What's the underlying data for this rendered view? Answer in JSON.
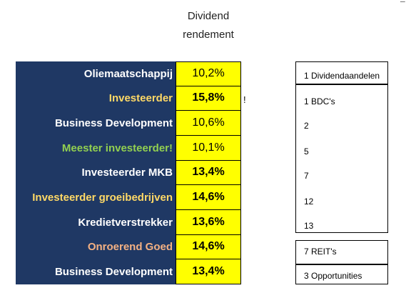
{
  "header": {
    "line1": "Dividend",
    "line2": "rendement"
  },
  "corner_mark": "¯",
  "rows": [
    {
      "label": "Oliemaatschappij",
      "value": "10,2%",
      "label_color": "#ffffff",
      "value_bold": false
    },
    {
      "label": "Investeerder",
      "value": "15,8%",
      "label_color": "#ffd966",
      "value_bold": true
    },
    {
      "label": "Business Development",
      "value": "10,6%",
      "label_color": "#ffffff",
      "value_bold": false
    },
    {
      "label": "Meester investeerder!",
      "value": "10,1%",
      "label_color": "#92d050",
      "value_bold": false
    },
    {
      "label": "Investeerder MKB",
      "value": "13,4%",
      "label_color": "#ffffff",
      "value_bold": true
    },
    {
      "label": "Investeerder groeibedrijven",
      "value": "14,6%",
      "label_color": "#ffd966",
      "value_bold": true
    },
    {
      "label": "Kredietverstrekker",
      "value": "13,6%",
      "label_color": "#ffffff",
      "value_bold": true
    },
    {
      "label": "Onroerend Goed",
      "value": "14,6%",
      "label_color": "#f4b183",
      "value_bold": true
    },
    {
      "label": "Business Development",
      "value": "13,4%",
      "label_color": "#ffffff",
      "value_bold": true
    }
  ],
  "exclamation": "!",
  "side_list": {
    "box1": [
      "1  Dividendaandelen"
    ],
    "box2": [
      "1  BDC's",
      "2",
      "5",
      "7",
      "12",
      "13"
    ],
    "box3": [
      "7  REIT's"
    ],
    "box4": [
      "3  Opportunities"
    ]
  },
  "colors": {
    "navy": "#1f3864",
    "yellow": "#ffff00"
  }
}
